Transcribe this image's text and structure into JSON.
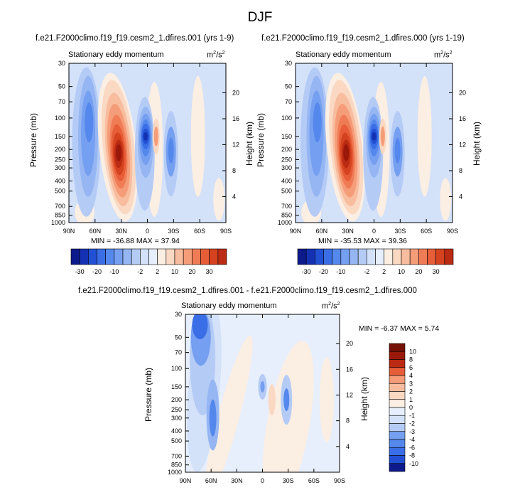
{
  "figure_title": "DJF",
  "colors": {
    "n10": "#0d1a8c",
    "n9": "#1431b4",
    "n8": "#2150d4",
    "n7": "#3a6ee6",
    "n6": "#5588ec",
    "n5": "#759ff0",
    "n4": "#95b6f3",
    "n3": "#b4cbf6",
    "n2": "#d3e1f9",
    "n1": "#e7effc",
    "p1": "#fbeee3",
    "p2": "#fad8c2",
    "p3": "#f8bc9e",
    "p4": "#f59c78",
    "p5": "#f07c56",
    "p6": "#e65d38",
    "p7": "#d5421f",
    "p8": "#bb2a12",
    "p9": "#9a180a",
    "p10": "#741006"
  },
  "chart_data": [
    {
      "type": "heatmap",
      "case_title": "f.e21.F2000climo.f19_f19.cesm2_1.dfires.001 (yrs 1-9)",
      "subtitle": "Stationary eddy momentum",
      "units": "m²/s²",
      "units_base": "m",
      "units_num": "2",
      "units_slash": "/s",
      "units_den": "2",
      "xlabel": "",
      "ylabel": "Pressure (mb)",
      "ylabel_right": "Height (km)",
      "x_ticks": [
        "90N",
        "60N",
        "30N",
        "0",
        "30S",
        "60S",
        "90S"
      ],
      "x_tick_values": [
        90,
        60,
        30,
        0,
        -30,
        -60,
        -90
      ],
      "xlim": [
        90,
        -90
      ],
      "y_ticks": [
        "30",
        "50",
        "70",
        "100",
        "150",
        "200",
        "250",
        "300",
        "400",
        "500",
        "700",
        "850",
        "1000"
      ],
      "y_tick_values": [
        30,
        50,
        70,
        100,
        150,
        200,
        250,
        300,
        400,
        500,
        700,
        850,
        1000
      ],
      "ylim": [
        1000,
        30
      ],
      "height_ticks": [
        "20",
        "16",
        "12",
        "8",
        "4"
      ],
      "height_tick_values": [
        20,
        16,
        12,
        8,
        4
      ],
      "min_max_text": "MIN = -36.88  MAX = 37.94",
      "min": -36.88,
      "max": 37.94,
      "features": [
        {
          "lat": 68,
          "p": 130,
          "value": -12,
          "desc": "elongated negative lobe"
        },
        {
          "lat": 33,
          "p": 210,
          "value": 37.94,
          "desc": "positive maximum"
        },
        {
          "lat": 1,
          "p": 150,
          "value": -36.88,
          "desc": "negative minimum"
        },
        {
          "lat": -10,
          "p": 150,
          "value": 8
        },
        {
          "lat": -27,
          "p": 200,
          "value": -14
        }
      ]
    },
    {
      "type": "heatmap",
      "case_title": "f.e21.F2000climo.f19_f19.cesm2_1.dfires.000 (yrs 1-19)",
      "subtitle": "Stationary eddy momentum",
      "units": "m²/s²",
      "units_base": "m",
      "units_num": "2",
      "units_slash": "/s",
      "units_den": "2",
      "xlabel": "",
      "ylabel": "Pressure (mb)",
      "ylabel_right": "Height (km)",
      "x_ticks": [
        "90N",
        "60N",
        "30N",
        "0",
        "30S",
        "60S",
        "90S"
      ],
      "x_tick_values": [
        90,
        60,
        30,
        0,
        -30,
        -60,
        -90
      ],
      "xlim": [
        90,
        -90
      ],
      "y_ticks": [
        "30",
        "50",
        "70",
        "100",
        "150",
        "200",
        "250",
        "300",
        "400",
        "500",
        "700",
        "850",
        "1000"
      ],
      "y_tick_values": [
        30,
        50,
        70,
        100,
        150,
        200,
        250,
        300,
        400,
        500,
        700,
        850,
        1000
      ],
      "ylim": [
        1000,
        30
      ],
      "height_ticks": [
        "20",
        "16",
        "12",
        "8",
        "4"
      ],
      "height_tick_values": [
        20,
        16,
        12,
        8,
        4
      ],
      "min_max_text": "MIN = -35.53  MAX = 39.36",
      "min": -35.53,
      "max": 39.36,
      "features": [
        {
          "lat": 66,
          "p": 130,
          "value": -12,
          "desc": "elongated negative lobe"
        },
        {
          "lat": 32,
          "p": 210,
          "value": 39.36,
          "desc": "positive maximum"
        },
        {
          "lat": 3,
          "p": 145,
          "value": -35.53,
          "desc": "negative minimum"
        },
        {
          "lat": -10,
          "p": 150,
          "value": 10
        },
        {
          "lat": -27,
          "p": 200,
          "value": -14
        }
      ]
    },
    {
      "type": "heatmap",
      "case_title": "f.e21.F2000climo.f19_f19.cesm2_1.dfires.001 - f.e21.F2000climo.f19_f19.cesm2_1.dfires.000",
      "subtitle": "Stationary eddy momentum",
      "units": "m²/s²",
      "units_base": "m",
      "units_num": "2",
      "units_slash": "/s",
      "units_den": "2",
      "xlabel": "",
      "ylabel": "Pressure (mb)",
      "ylabel_right": "Height (km)",
      "x_ticks": [
        "90N",
        "60N",
        "30N",
        "0",
        "30S",
        "60S",
        "90S"
      ],
      "x_tick_values": [
        90,
        60,
        30,
        0,
        -30,
        -60,
        -90
      ],
      "xlim": [
        90,
        -90
      ],
      "y_ticks": [
        "30",
        "50",
        "70",
        "100",
        "150",
        "200",
        "250",
        "300",
        "400",
        "500",
        "700",
        "850",
        "1000"
      ],
      "y_tick_values": [
        30,
        50,
        70,
        100,
        150,
        200,
        250,
        300,
        400,
        500,
        700,
        850,
        1000
      ],
      "ylim": [
        1000,
        30
      ],
      "height_ticks": [
        "20",
        "16",
        "12",
        "8",
        "4"
      ],
      "height_tick_values": [
        20,
        16,
        12,
        8,
        4
      ],
      "min_max_text": "MIN =  -6.37  MAX =   5.74",
      "min": -6.37,
      "max": 5.74,
      "features": [
        {
          "lat": 73,
          "p": 45,
          "value": -6.37,
          "desc": "negative minimum upper left"
        },
        {
          "lat": 58,
          "p": 280,
          "value": -5
        },
        {
          "lat": 0,
          "p": 150,
          "value": -2
        },
        {
          "lat": -28,
          "p": 200,
          "value": -4
        },
        {
          "lat": -11,
          "p": 200,
          "value": 2
        }
      ]
    }
  ],
  "colorbars": [
    {
      "labels": [
        "-30",
        "-20",
        "-10",
        "-2",
        "2",
        "10",
        "20",
        "30"
      ],
      "levels": [
        -35,
        -30,
        -25,
        -20,
        -15,
        -10,
        -5,
        -2,
        0,
        2,
        5,
        10,
        15,
        20,
        25,
        30,
        35
      ],
      "colors": [
        "n10",
        "n9",
        "n8",
        "n7",
        "n6",
        "n5",
        "n4",
        "n3",
        "n2",
        "n1",
        "p1",
        "p2",
        "p3",
        "p4",
        "p5",
        "p6",
        "p7",
        "p8"
      ]
    },
    {
      "labels": [
        "-30",
        "-20",
        "-10",
        "-2",
        "2",
        "10",
        "20",
        "30"
      ],
      "levels": [
        -35,
        -30,
        -25,
        -20,
        -15,
        -10,
        -5,
        -2,
        0,
        2,
        5,
        10,
        15,
        20,
        25,
        30,
        35
      ],
      "colors": [
        "n10",
        "n9",
        "n8",
        "n7",
        "n6",
        "n5",
        "n4",
        "n3",
        "n2",
        "n1",
        "p1",
        "p2",
        "p3",
        "p4",
        "p5",
        "p6",
        "p7",
        "p8"
      ]
    },
    {
      "labels": [
        "10",
        "8",
        "6",
        "4",
        "3",
        "2",
        "1",
        "0",
        "-1",
        "-2",
        "-3",
        "-4",
        "-6",
        "-8",
        "-10"
      ],
      "levels": [
        10,
        8,
        6,
        4,
        3,
        2,
        1,
        0,
        -1,
        -2,
        -3,
        -4,
        -6,
        -8,
        -10
      ],
      "colors": [
        "p10",
        "p9",
        "p8",
        "p6",
        "p4",
        "p3",
        "p2",
        "p1",
        "n1",
        "n2",
        "n3",
        "n5",
        "n6",
        "n7",
        "n8",
        "n10"
      ]
    }
  ]
}
